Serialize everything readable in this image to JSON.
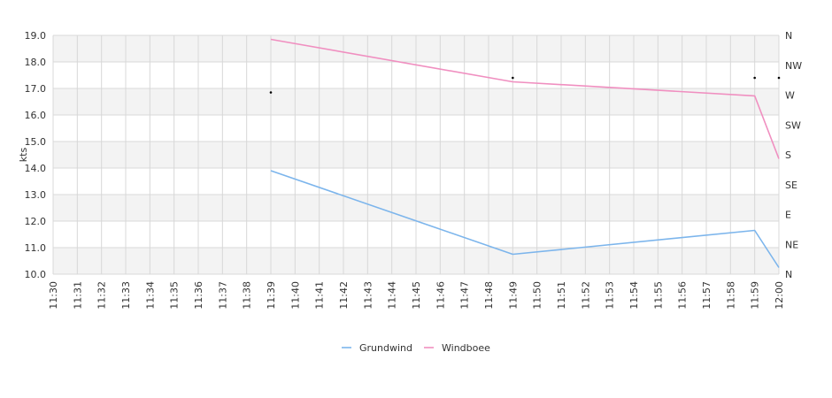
{
  "chart_data": {
    "type": "line",
    "title": "",
    "xlabel": "",
    "ylabel": "kts",
    "ylim": [
      10.0,
      19.0
    ],
    "yticks": [
      "10.0",
      "11.0",
      "12.0",
      "13.0",
      "14.0",
      "15.0",
      "16.0",
      "17.0",
      "18.0",
      "19.0"
    ],
    "y2ticks": [
      "N",
      "NE",
      "E",
      "SE",
      "S",
      "SW",
      "W",
      "NW",
      "N"
    ],
    "categories": [
      "11:30",
      "11:31",
      "11:32",
      "11:33",
      "11:34",
      "11:35",
      "11:36",
      "11:37",
      "11:38",
      "11:39",
      "11:40",
      "11:41",
      "11:42",
      "11:43",
      "11:44",
      "11:45",
      "11:46",
      "11:47",
      "11:48",
      "11:49",
      "11:50",
      "11:51",
      "11:52",
      "11:53",
      "11:54",
      "11:55",
      "11:56",
      "11:57",
      "11:58",
      "11:59",
      "12:00"
    ],
    "grid": true,
    "legend_position": "bottom-center",
    "series": [
      {
        "name": "Grundwind",
        "color": "#7cb5ec",
        "points": [
          [
            "11:39",
            13.9
          ],
          [
            "11:49",
            10.75
          ],
          [
            "11:59",
            11.65
          ],
          [
            "12:00",
            10.25
          ]
        ]
      },
      {
        "name": "Windboee",
        "color": "#f08fc0",
        "points": [
          [
            "11:39",
            18.85
          ],
          [
            "11:49",
            17.25
          ],
          [
            "11:59",
            16.72
          ],
          [
            "12:00",
            14.35
          ]
        ]
      }
    ],
    "direction_markers": [
      [
        "11:39",
        16.85
      ],
      [
        "11:49",
        17.4
      ],
      [
        "11:59",
        17.4
      ],
      [
        "12:00",
        17.4
      ]
    ]
  }
}
